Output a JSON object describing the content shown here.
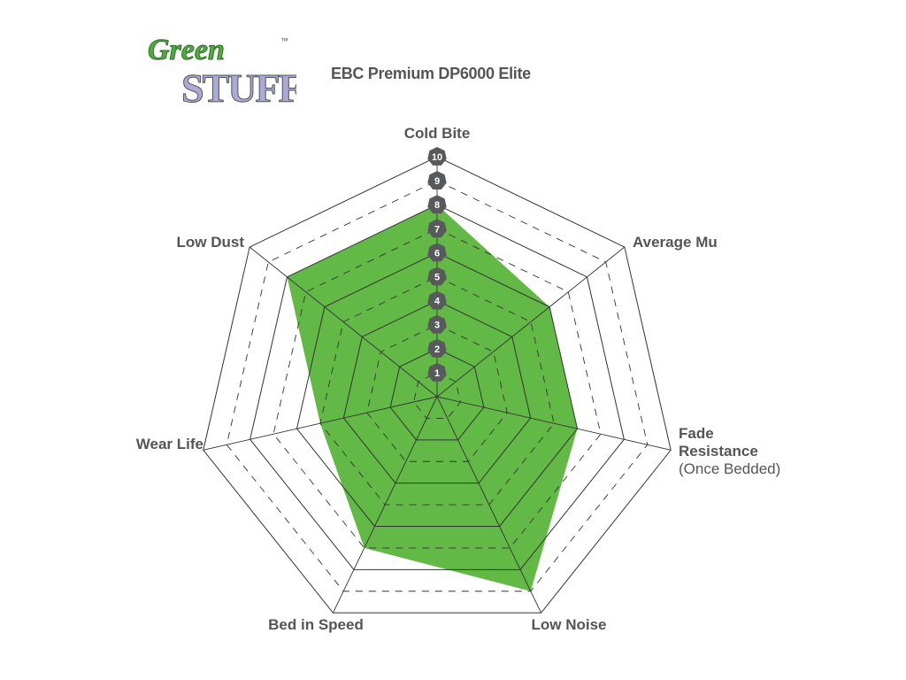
{
  "logo": {
    "text_top": "Green",
    "text_bottom": "Stuff",
    "tm": "™"
  },
  "chart_data": {
    "type": "radar",
    "title": "EBC Premium DP6000 Elite",
    "axes": [
      "Cold Bite",
      "Average Mu",
      "Fade Resistance",
      "Low Noise",
      "Bed in Speed",
      "Wear Life",
      "Low Dust"
    ],
    "axis_sublabels": {
      "Fade Resistance": "(Once Bedded)"
    },
    "values": [
      8,
      6,
      6,
      9,
      7,
      5,
      8
    ],
    "range": [
      0,
      10
    ],
    "scale_ticks": [
      "1",
      "2",
      "3",
      "4",
      "5",
      "6",
      "7",
      "8",
      "9",
      "10"
    ],
    "fill_color": "#62b946",
    "badge_color": "#58595b",
    "grid": true
  }
}
